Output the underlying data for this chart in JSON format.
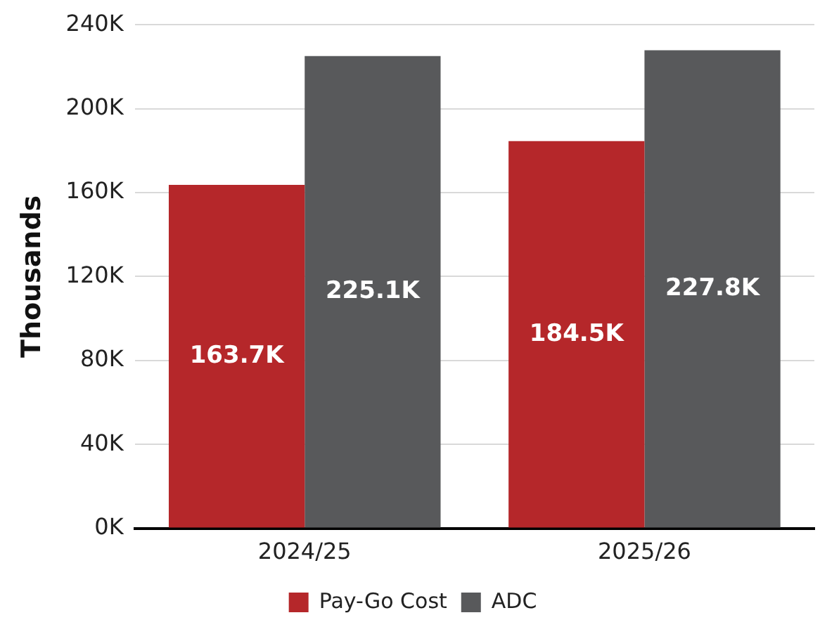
{
  "chart_data": {
    "type": "bar",
    "ylabel": "Thousands",
    "categories": [
      "2024/25",
      "2025/26"
    ],
    "series": [
      {
        "name": "Pay-Go Cost",
        "color": "#b5272a",
        "values": [
          163.7,
          184.5
        ],
        "value_labels": [
          "163.7K",
          "184.5K"
        ]
      },
      {
        "name": "ADC",
        "color": "#58595b",
        "values": [
          225.1,
          227.8
        ],
        "value_labels": [
          "225.1K",
          "227.8K"
        ]
      }
    ],
    "ylim": [
      0,
      240
    ],
    "yticks": [
      {
        "value": 0,
        "label": "0K"
      },
      {
        "value": 40,
        "label": "40K"
      },
      {
        "value": 80,
        "label": "80K"
      },
      {
        "value": 120,
        "label": "120K"
      },
      {
        "value": 160,
        "label": "160K"
      },
      {
        "value": 200,
        "label": "200K"
      },
      {
        "value": 240,
        "label": "240K"
      }
    ],
    "grid": "y",
    "legend": "bottom"
  }
}
